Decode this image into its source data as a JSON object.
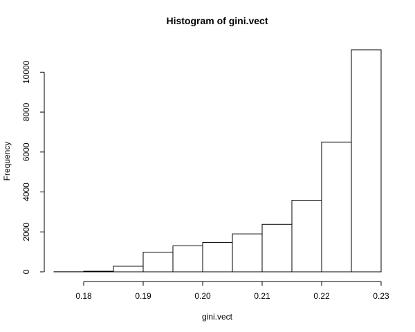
{
  "chart_data": {
    "type": "bar",
    "title": "Histogram of gini.vect",
    "xlabel": "gini.vect",
    "ylabel": "Frequency",
    "bin_edges": [
      0.175,
      0.18,
      0.185,
      0.19,
      0.195,
      0.2,
      0.205,
      0.21,
      0.215,
      0.22,
      0.225,
      0.23
    ],
    "values": [
      5,
      30,
      280,
      980,
      1300,
      1470,
      1900,
      2380,
      3580,
      6500,
      11120
    ],
    "xlim": [
      0.175,
      0.23
    ],
    "ylim": [
      0,
      11120
    ],
    "x_ticks": [
      0.18,
      0.19,
      0.2,
      0.21,
      0.22,
      0.23
    ],
    "x_tick_labels": [
      "0.18",
      "0.19",
      "0.20",
      "0.21",
      "0.22",
      "0.23"
    ],
    "y_ticks": [
      0,
      2000,
      4000,
      6000,
      8000,
      10000
    ],
    "y_tick_labels": [
      "0",
      "2000",
      "4000",
      "6000",
      "8000",
      "10000"
    ],
    "grid": false,
    "legend": "none",
    "bar_fill": "#ffffff",
    "bar_stroke": "#000000"
  }
}
